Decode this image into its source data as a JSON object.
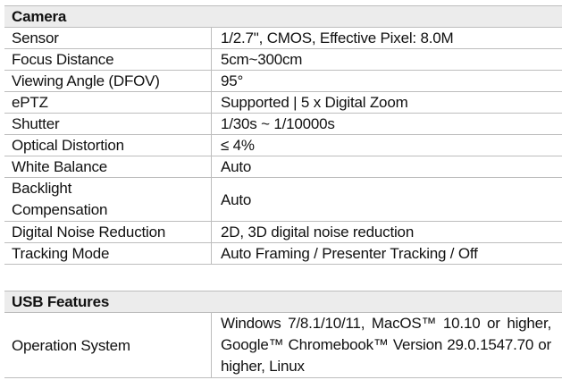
{
  "camera": {
    "title": "Camera",
    "rows": [
      {
        "label": "Sensor",
        "value": "1/2.7\", CMOS, Effective Pixel: 8.0M"
      },
      {
        "label": "Focus Distance",
        "value": "5cm~300cm"
      },
      {
        "label": "Viewing Angle (DFOV)",
        "value": "95°"
      },
      {
        "label": "ePTZ",
        "value": "Supported | 5 x Digital Zoom"
      },
      {
        "label": "Shutter",
        "value": "1/30s ~ 1/10000s"
      },
      {
        "label": "Optical Distortion",
        "value": "≤ 4%"
      },
      {
        "label": "White Balance",
        "value": "Auto"
      },
      {
        "label": "Backlight Compensation",
        "value": "Auto"
      },
      {
        "label": "Digital Noise Reduction",
        "value": "2D, 3D digital noise reduction"
      },
      {
        "label": "Tracking Mode",
        "value": "Auto Framing / Presenter Tracking / Off"
      }
    ]
  },
  "usb": {
    "title": "USB Features",
    "rows": [
      {
        "label": "Operation System",
        "value": "Windows 7/8.1/10/11, MacOS™ 10.10 or higher, Google™ Chromebook™ Version 29.0.1547.70 or higher, Linux"
      }
    ]
  }
}
